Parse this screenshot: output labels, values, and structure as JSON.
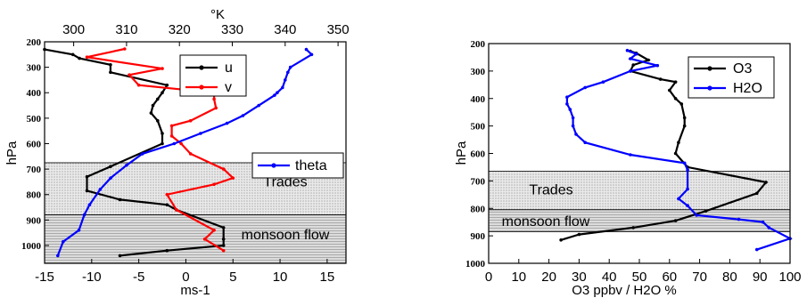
{
  "chart_data": [
    {
      "type": "line",
      "xlabel": "ms-1",
      "ylabel": "hPa",
      "x2label": "°K",
      "x_ticks": [
        "-15",
        "-10",
        "-5",
        "0",
        "5",
        "10",
        "15"
      ],
      "x2_ticks": [
        "300",
        "310",
        "320",
        "330",
        "340",
        "350"
      ],
      "y_ticks": [
        "200",
        "300",
        "400",
        "500",
        "600",
        "700",
        "800",
        "900",
        "1000"
      ],
      "xlim": [
        -15,
        17
      ],
      "x2lim": [
        294.5,
        351.5
      ],
      "ylim": [
        200,
        1070
      ],
      "y_scale": "linear",
      "shaded_regions": [
        {
          "label": "Trades",
          "range": [
            675,
            880
          ]
        },
        {
          "label": "monsoon flow",
          "range": [
            880,
            1070
          ]
        }
      ],
      "series": [
        {
          "name": "u",
          "color": "#000000",
          "axis": "bottom",
          "points": [
            [
              -15,
              230
            ],
            [
              -12,
              250
            ],
            [
              -11.3,
              265
            ],
            [
              -8,
              290
            ],
            [
              -8,
              320
            ],
            [
              -2,
              370
            ],
            [
              -2.5,
              400
            ],
            [
              -3,
              425
            ],
            [
              -3.5,
              450
            ],
            [
              -3.7,
              480
            ],
            [
              -3,
              510
            ],
            [
              -2.5,
              560
            ],
            [
              -2.5,
              600
            ],
            [
              -8,
              690
            ],
            [
              -10.5,
              730
            ],
            [
              -10.5,
              785
            ],
            [
              -7,
              820
            ],
            [
              -2,
              840
            ],
            [
              -1,
              860
            ],
            [
              4,
              930
            ],
            [
              4,
              975
            ],
            [
              4,
              1000
            ],
            [
              -2,
              1020
            ],
            [
              -7,
              1040
            ]
          ]
        },
        {
          "name": "v",
          "color": "#ff0000",
          "axis": "bottom",
          "points": [
            [
              -6.5,
              228
            ],
            [
              -10.5,
              260
            ],
            [
              -2.5,
              305
            ],
            [
              -6,
              330
            ],
            [
              -5,
              370
            ],
            [
              3,
              400
            ],
            [
              3,
              425
            ],
            [
              3.2,
              460
            ],
            [
              0.5,
              510
            ],
            [
              -1.5,
              530
            ],
            [
              -1.5,
              570
            ],
            [
              -0.5,
              600
            ],
            [
              0.5,
              640
            ],
            [
              4,
              700
            ],
            [
              5,
              735
            ],
            [
              3,
              760
            ],
            [
              -2,
              800
            ],
            [
              -1,
              860
            ],
            [
              3,
              940
            ],
            [
              2,
              975
            ],
            [
              4,
              1020
            ]
          ]
        },
        {
          "name": "theta",
          "color": "#0000ff",
          "axis": "top",
          "points": [
            [
              344,
              230
            ],
            [
              345,
              250
            ],
            [
              341,
              300
            ],
            [
              340.5,
              320
            ],
            [
              340,
              350
            ],
            [
              339.5,
              380
            ],
            [
              338.5,
              400
            ],
            [
              338,
              410
            ],
            [
              335,
              450
            ],
            [
              332,
              490
            ],
            [
              329,
              520
            ],
            [
              324,
              560
            ],
            [
              319,
              600
            ],
            [
              313,
              640
            ],
            [
              310,
              685
            ],
            [
              307,
              735
            ],
            [
              305,
              780
            ],
            [
              303,
              840
            ],
            [
              302,
              880
            ],
            [
              301,
              940
            ],
            [
              298,
              985
            ],
            [
              297,
              1040
            ]
          ]
        }
      ]
    },
    {
      "type": "line",
      "xlabel": "O3 ppbv / H2O %",
      "ylabel": "hPa",
      "x_ticks": [
        "0",
        "10",
        "20",
        "30",
        "40",
        "50",
        "60",
        "70",
        "80",
        "90",
        "100"
      ],
      "y_ticks": [
        "200",
        "300",
        "400",
        "500",
        "600",
        "700",
        "800",
        "900",
        "1000"
      ],
      "xlim": [
        0,
        100
      ],
      "ylim": [
        200,
        1000
      ],
      "y_scale": "linear",
      "shaded_regions": [
        {
          "label": "Trades",
          "range": [
            665,
            805
          ]
        },
        {
          "label": "monsoon flow",
          "range": [
            805,
            885
          ]
        }
      ],
      "series": [
        {
          "name": "O3",
          "color": "#000000",
          "points": [
            [
              47,
              228
            ],
            [
              49,
              235
            ],
            [
              53,
              260
            ],
            [
              48,
              278
            ],
            [
              47,
              300
            ],
            [
              57,
              330
            ],
            [
              62,
              340
            ],
            [
              60,
              370
            ],
            [
              62,
              400
            ],
            [
              64,
              420
            ],
            [
              65,
              470
            ],
            [
              65,
              500
            ],
            [
              63,
              560
            ],
            [
              62,
              600
            ],
            [
              66,
              650
            ],
            [
              92,
              705
            ],
            [
              89,
              745
            ],
            [
              72,
              810
            ],
            [
              62,
              845
            ],
            [
              48,
              870
            ],
            [
              30,
              895
            ],
            [
              24,
              915
            ]
          ]
        },
        {
          "name": "H2O",
          "color": "#0000ff",
          "points": [
            [
              46,
              225
            ],
            [
              49,
              238
            ],
            [
              47,
              255
            ],
            [
              56,
              280
            ],
            [
              47,
              300
            ],
            [
              38,
              340
            ],
            [
              32,
              360
            ],
            [
              26,
              395
            ],
            [
              26,
              420
            ],
            [
              27,
              440
            ],
            [
              28,
              470
            ],
            [
              28,
              500
            ],
            [
              29,
              530
            ],
            [
              32,
              560
            ],
            [
              47,
              605
            ],
            [
              65,
              635
            ],
            [
              66,
              660
            ],
            [
              66,
              730
            ],
            [
              63,
              765
            ],
            [
              66,
              790
            ],
            [
              69,
              825
            ],
            [
              83,
              840
            ],
            [
              91,
              850
            ],
            [
              93,
              870
            ],
            [
              100,
              910
            ],
            [
              89,
              950
            ]
          ]
        }
      ]
    }
  ]
}
